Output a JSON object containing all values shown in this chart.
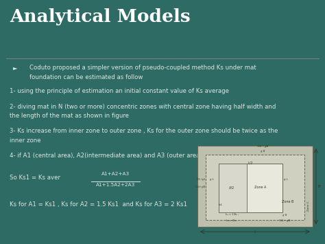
{
  "title": "Analytical Models",
  "bg_color": "#2e6b65",
  "title_color": "#ffffff",
  "text_color": "#dde8e4",
  "accent_color": "#8b1a1a",
  "bullet_symbol": "►",
  "bullet_text_line1": "Coduto proposed a simpler version of pseudo-coupled method Ks under mat",
  "bullet_text_line2": "foundation can be estimated as follow",
  "item1": "1- using the principle of estimation an initial constant value of Ks average",
  "item2a": "2- diving mat in N (two or more) concentric zones with central zone having half width and",
  "item2b": "the length of the mat as shown in figure",
  "item3a": "3- Ks increase from inner zone to outer zone , Ks for the outer zone should be twice as the",
  "item3b": "inner zone",
  "item4": "4- if A1 (central area), A2(intermediate area) and A3 (outer area)",
  "formula1_label": "So Ks1 = Ks aver",
  "formula1_num": "A1+A2+A3",
  "formula1_den": "A1+1.5A2+2A3",
  "formula2": "Ks for A1 = Ks1 , Ks for A2 = 1.5 Ks1  and Ks for A3 = 2 Ks1",
  "diag_bg": "#c8c8b8",
  "diag_outer_bg": "#bfbfad",
  "diag_mid_bg": "#d0d0c0",
  "diag_inner_bg": "#e8e8dc",
  "diag_innermost_bg": "#d8d8cc",
  "diag_edge": "#666655",
  "diag_text": "#333322"
}
